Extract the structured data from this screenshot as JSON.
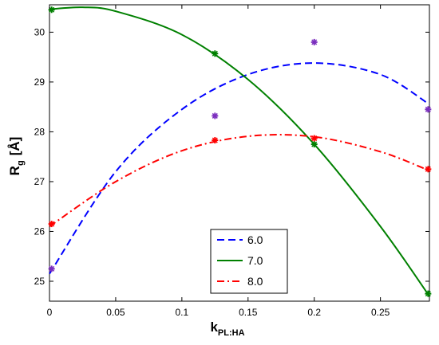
{
  "chart_data": {
    "type": "line",
    "title": "",
    "xlabel": "k",
    "xlabel_sub": "PL:HA",
    "ylabel": "R",
    "ylabel_sub": "g",
    "ylabel_unit": "[Å]",
    "xlim": [
      0,
      0.287
    ],
    "ylim": [
      24.6,
      30.55
    ],
    "xticks": [
      0,
      0.05,
      0.1,
      0.15,
      0.2,
      0.25
    ],
    "xtick_labels": [
      "0",
      "0.05",
      "0.1",
      "0.15",
      "0.2",
      "0.25"
    ],
    "yticks": [
      25,
      26,
      27,
      28,
      29,
      30
    ],
    "ytick_labels": [
      "25",
      "26",
      "27",
      "28",
      "29",
      "30"
    ],
    "grid": false,
    "legend_position": "bottom-center",
    "series": [
      {
        "name": "6.0",
        "color": "#0000ff",
        "line_style": "dashed",
        "marker_color": "#7b2fbe",
        "points": [
          [
            0.0016,
            25.25
          ],
          [
            0.125,
            28.32
          ],
          [
            0.2,
            29.8
          ],
          [
            0.286,
            28.45
          ]
        ],
        "fit": [
          [
            0,
            25.15
          ],
          [
            0.05,
            27.2
          ],
          [
            0.1,
            28.45
          ],
          [
            0.15,
            29.15
          ],
          [
            0.2,
            29.38
          ],
          [
            0.25,
            29.15
          ],
          [
            0.287,
            28.55
          ]
        ]
      },
      {
        "name": "7.0",
        "color": "#008000",
        "line_style": "solid",
        "marker_color": "#008000",
        "points": [
          [
            0.0016,
            30.45
          ],
          [
            0.125,
            29.57
          ],
          [
            0.2,
            27.75
          ],
          [
            0.286,
            24.75
          ]
        ],
        "fit": [
          [
            0,
            30.46
          ],
          [
            0.025,
            30.5
          ],
          [
            0.05,
            30.42
          ],
          [
            0.1,
            29.95
          ],
          [
            0.15,
            29.05
          ],
          [
            0.2,
            27.75
          ],
          [
            0.25,
            26.1
          ],
          [
            0.287,
            24.7
          ]
        ]
      },
      {
        "name": "8.0",
        "color": "#ff0000",
        "line_style": "dashdot",
        "marker_color": "#ff0000",
        "points": [
          [
            0.0016,
            26.15
          ],
          [
            0.125,
            27.83
          ],
          [
            0.2,
            27.87
          ],
          [
            0.286,
            27.25
          ]
        ],
        "fit": [
          [
            0,
            26.1
          ],
          [
            0.05,
            27.0
          ],
          [
            0.1,
            27.62
          ],
          [
            0.15,
            27.91
          ],
          [
            0.2,
            27.9
          ],
          [
            0.25,
            27.6
          ],
          [
            0.287,
            27.22
          ]
        ]
      }
    ]
  }
}
